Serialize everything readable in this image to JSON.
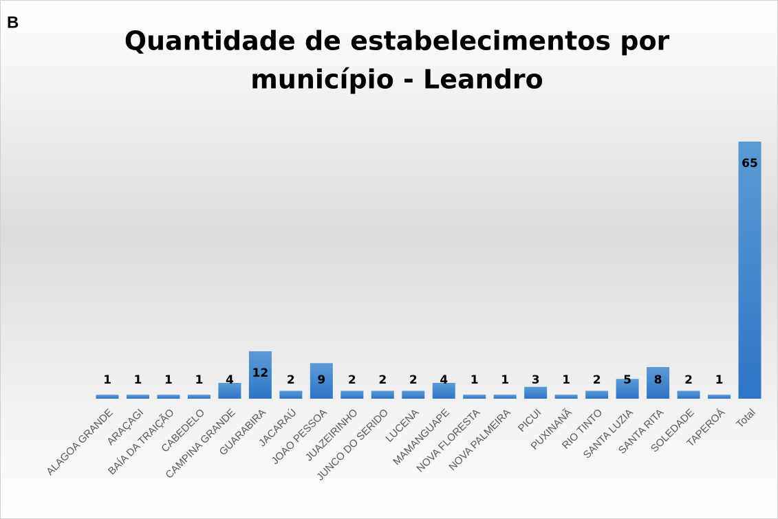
{
  "chart_data": {
    "type": "bar",
    "panel_label": "B",
    "title": [
      "Quantidade de estabelecimentos por",
      "município - Leandro"
    ],
    "categories": [
      "ALAGOA GRANDE",
      "ARAÇAGI",
      "BAÍA DA TRAIÇÃO",
      "CABEDELO",
      "CAMPINA GRANDE",
      "GUARABIRA",
      "JACARAÚ",
      "JOAO PESSOA",
      "JUAZEIRINHO",
      "JUNCO DO SERIDO",
      "LUCENA",
      "MAMANGUAPE",
      "NOVA FLORESTA",
      "NOVA PALMEIRA",
      "PICUI",
      "PUXINANÃ",
      "RIO TINTO",
      "SANTA LUZIA",
      "SANTA RITA",
      "SOLEDADE",
      "TAPEROÁ",
      "Total"
    ],
    "values": [
      1,
      1,
      1,
      1,
      4,
      12,
      2,
      9,
      2,
      2,
      2,
      4,
      1,
      1,
      3,
      1,
      2,
      5,
      8,
      2,
      1,
      65
    ],
    "color": "#3f88cf"
  }
}
